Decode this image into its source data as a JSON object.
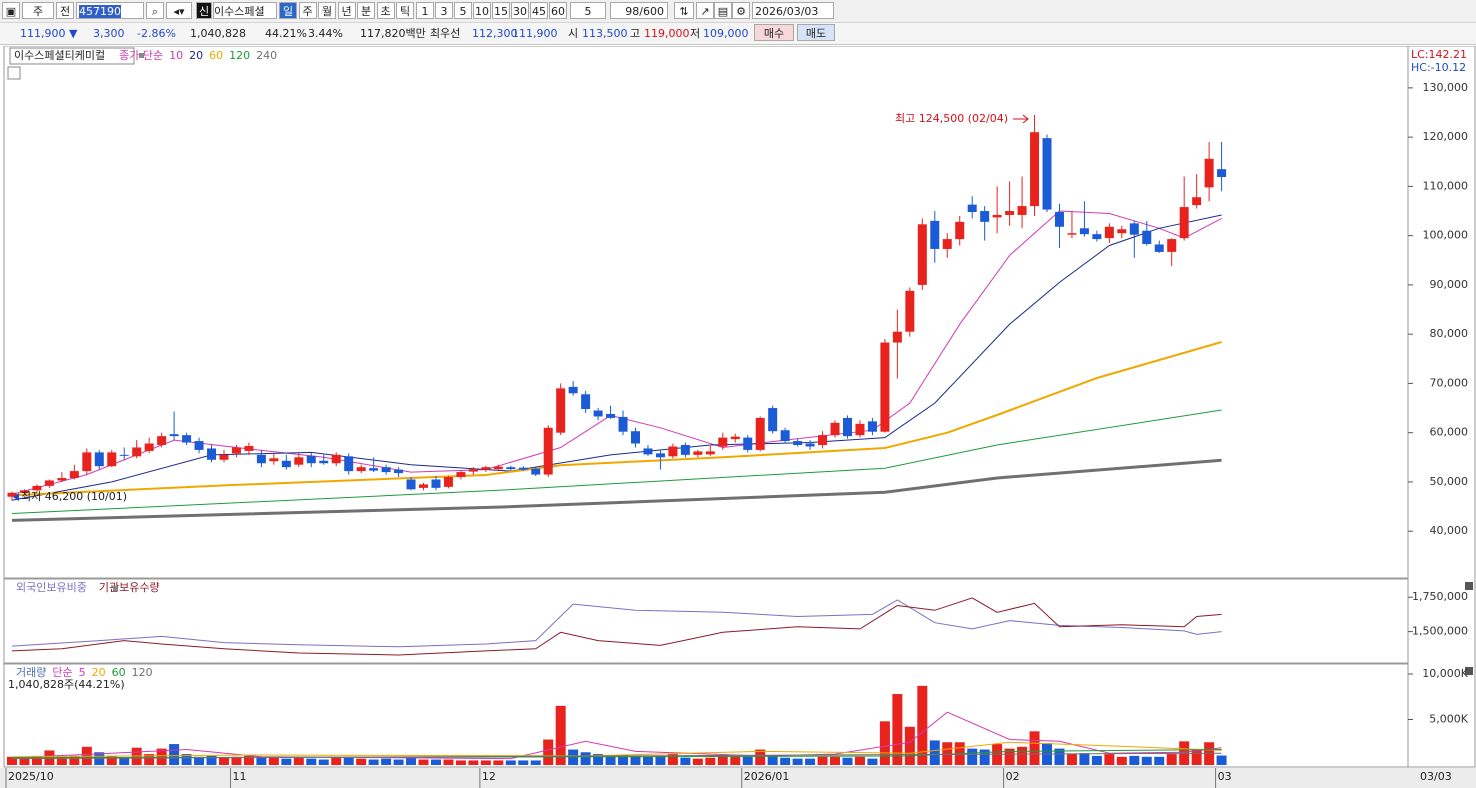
{
  "toolbar": {
    "market": "주",
    "prev": "전",
    "code": "457190",
    "sin": "신",
    "name": "이수스페셜",
    "periods": [
      "일",
      "주",
      "월",
      "년",
      "분",
      "초",
      "틱"
    ],
    "intervals": [
      "1",
      "3",
      "5",
      "10",
      "15",
      "30",
      "45",
      "60"
    ],
    "unit": "5",
    "count": "98/600",
    "date": "2026/03/03"
  },
  "quote": {
    "price": "111,900 ▼",
    "change": "3,300",
    "rate": "-2.86%",
    "volume": "1,040,828",
    "volume_rate": "44.21%",
    "turnover": "3.44%",
    "amount": "117,820백만",
    "best_label": "최우선",
    "ask": "112,300",
    "bid": "111,900",
    "open_label": "시",
    "open": "113,500",
    "high_label": "고",
    "high": "119,000",
    "low_label": "저",
    "low": "109,000",
    "buy": "매수",
    "sell": "매도"
  },
  "chart_data": [
    {
      "type": "candlestick",
      "title": "이수스페셜티케미컬",
      "legend_label": "종가 단순",
      "up_color": "#e8231e",
      "down_color": "#1c5bd6",
      "indicators": [
        "LC:142.21",
        "HC:-10.12"
      ],
      "annotations": [
        "최고 124,500 (02/04)",
        "최저 46,200 (10/01)"
      ],
      "candles": {
        "open": [
          47000,
          47800,
          48300,
          49200,
          50300,
          50800,
          52200,
          56000,
          53200,
          55500,
          55200,
          56300,
          57500,
          59700,
          59500,
          58300,
          56800,
          54500,
          55800,
          56300,
          55500,
          54200,
          54300,
          53500,
          55300,
          54300,
          53800,
          55200,
          52200,
          52800,
          53000,
          52500,
          50500,
          48800,
          50500,
          49000,
          51000,
          52100,
          52500,
          52600,
          53000,
          52900,
          52700,
          51500,
          60000,
          69300,
          67800,
          64500,
          63800,
          63200,
          60300,
          56800,
          55800,
          55200,
          57500,
          55500,
          55600,
          57200,
          58700,
          59000,
          56500,
          65000,
          60500,
          58300,
          57800,
          57500,
          59500,
          63000,
          59500,
          62300,
          60200,
          78300,
          80500,
          90000,
          103000,
          97300,
          99300,
          106300,
          105000,
          103700,
          104200,
          104200,
          106000,
          119800,
          104800,
          100200,
          101500,
          100300,
          99500,
          100500,
          102500,
          101000,
          98200,
          96700,
          99500,
          106200,
          109800,
          113500
        ],
        "high": [
          48000,
          48500,
          49500,
          50500,
          52000,
          53500,
          56800,
          56500,
          56500,
          57000,
          58500,
          59000,
          60000,
          64300,
          60000,
          59000,
          57500,
          56500,
          57500,
          58000,
          56500,
          55800,
          55500,
          55800,
          56000,
          55500,
          56000,
          55800,
          53500,
          55000,
          53500,
          53000,
          51000,
          49800,
          51200,
          51300,
          52300,
          53000,
          53300,
          53500,
          53300,
          53200,
          53000,
          61500,
          70000,
          70500,
          68500,
          65000,
          65500,
          64500,
          61000,
          57500,
          56500,
          57800,
          58000,
          56500,
          57300,
          60000,
          59800,
          59500,
          63300,
          65500,
          61000,
          58800,
          58500,
          60300,
          62500,
          63500,
          62500,
          63000,
          79000,
          85000,
          89500,
          103500,
          105000,
          100500,
          104000,
          108000,
          106000,
          110000,
          111000,
          112000,
          124500,
          120500,
          106500,
          105000,
          107000,
          101000,
          102500,
          102000,
          103000,
          103000,
          99000,
          99500,
          112000,
          112500,
          119000,
          119000
        ],
        "low": [
          46200,
          47300,
          48000,
          48800,
          50000,
          50500,
          51500,
          52500,
          53000,
          54500,
          54800,
          55800,
          57000,
          58500,
          57500,
          55800,
          54000,
          54000,
          55000,
          55500,
          53000,
          53500,
          52500,
          53000,
          53000,
          53500,
          53200,
          51500,
          51800,
          52000,
          51500,
          51000,
          48300,
          48300,
          48300,
          48700,
          50500,
          51500,
          52000,
          52200,
          52300,
          52200,
          51200,
          51000,
          59500,
          67500,
          64000,
          62500,
          62800,
          59500,
          57000,
          55300,
          52500,
          54800,
          55000,
          55000,
          55300,
          56500,
          58000,
          56000,
          56200,
          59800,
          57800,
          57200,
          56500,
          56800,
          59000,
          58800,
          59000,
          59500,
          60000,
          71000,
          79500,
          89000,
          94500,
          95500,
          98000,
          103500,
          99000,
          100500,
          102000,
          101500,
          104000,
          104800,
          97500,
          99500,
          99800,
          98800,
          98500,
          99500,
          95500,
          98000,
          96500,
          93800,
          99000,
          105500,
          107000,
          109000
        ],
        "close": [
          47800,
          48300,
          49200,
          50300,
          50800,
          52200,
          56000,
          53200,
          56000,
          55300,
          57000,
          57800,
          59300,
          59300,
          58000,
          56500,
          54500,
          55500,
          57000,
          57300,
          53800,
          54800,
          53000,
          55000,
          53800,
          53800,
          55500,
          52200,
          53000,
          52300,
          52000,
          51800,
          48500,
          49500,
          48800,
          51000,
          52000,
          52600,
          53000,
          53100,
          52600,
          52500,
          51500,
          61000,
          69000,
          68000,
          64800,
          63300,
          63000,
          60200,
          57800,
          55600,
          55000,
          57200,
          55500,
          56200,
          56200,
          59000,
          59200,
          56500,
          63000,
          60300,
          58300,
          57500,
          57200,
          59500,
          62000,
          59300,
          61800,
          60200,
          78300,
          80500,
          88800,
          102300,
          97300,
          99300,
          102800,
          104800,
          102800,
          104200,
          105000,
          106000,
          121000,
          105300,
          101800,
          100500,
          100300,
          99300,
          101800,
          101300,
          100200,
          98300,
          96700,
          99300,
          105800,
          107800,
          115600,
          111900
        ]
      },
      "series": [
        {
          "name": "10",
          "color": "#d23ab4",
          "width": 1,
          "x": [
            0,
            6,
            13,
            18,
            25,
            32,
            38,
            44,
            48,
            52,
            57,
            62,
            69,
            72,
            76,
            80,
            84,
            88,
            92,
            94,
            97
          ],
          "values": [
            47500,
            51500,
            58500,
            57000,
            55000,
            52000,
            52500,
            57000,
            63500,
            61000,
            57000,
            58500,
            60500,
            66000,
            82000,
            96000,
            105000,
            104500,
            101500,
            99500,
            103500
          ]
        },
        {
          "name": "20",
          "color": "#1a2a8c",
          "width": 1,
          "x": [
            0,
            8,
            16,
            24,
            32,
            40,
            48,
            56,
            64,
            70,
            74,
            80,
            84,
            88,
            92,
            97
          ],
          "values": [
            46300,
            50000,
            55500,
            56000,
            53500,
            52200,
            55500,
            57500,
            58000,
            59000,
            66000,
            82000,
            90500,
            98000,
            101500,
            104200
          ]
        },
        {
          "name": "60",
          "color": "#f0a800",
          "width": 2,
          "x": [
            0,
            17,
            38,
            44,
            57,
            70,
            75,
            79,
            87,
            97
          ],
          "values": [
            47300,
            49300,
            51400,
            53400,
            55000,
            56900,
            60000,
            63600,
            71100,
            78400
          ]
        },
        {
          "name": "120",
          "color": "#1e9a3c",
          "width": 1,
          "x": [
            0,
            39,
            70,
            79,
            97
          ],
          "values": [
            43600,
            48300,
            52800,
            57500,
            64600
          ]
        },
        {
          "name": "240",
          "color": "#707070",
          "width": 3,
          "x": [
            0,
            39,
            70,
            79,
            97
          ],
          "values": [
            42200,
            44900,
            47900,
            50800,
            54400
          ]
        }
      ],
      "ylim": [
        30500,
        138500
      ],
      "yticks": [
        {
          "value": 40000,
          "label": "40,000"
        },
        {
          "value": 50000,
          "label": "50,000"
        },
        {
          "value": 60000,
          "label": "60,000"
        },
        {
          "value": 70000,
          "label": "70,000"
        },
        {
          "value": 80000,
          "label": "80,000"
        },
        {
          "value": 90000,
          "label": "90,000"
        },
        {
          "value": 100000,
          "label": "100,000"
        },
        {
          "value": 110000,
          "label": "110,000"
        },
        {
          "value": 120000,
          "label": "120,000"
        },
        {
          "value": 130000,
          "label": "130,000"
        }
      ]
    },
    {
      "type": "line",
      "series": [
        {
          "name": "외국인보유비중",
          "color": "#7b6fc4",
          "x": [
            0,
            7,
            12,
            17,
            23,
            31,
            38,
            42,
            45,
            50,
            57,
            63,
            69,
            71,
            74,
            77,
            80,
            84,
            89,
            94,
            95,
            97
          ],
          "values": [
            1395000,
            1435000,
            1465000,
            1420000,
            1405000,
            1390000,
            1410000,
            1435000,
            1700000,
            1655000,
            1640000,
            1610000,
            1625000,
            1730000,
            1565000,
            1520000,
            1580000,
            1545000,
            1530000,
            1505000,
            1480000,
            1500000
          ]
        },
        {
          "name": "기관보유수량",
          "color": "#8b1a2a",
          "x": [
            0,
            4,
            9,
            12,
            17,
            23,
            31,
            38,
            42,
            44,
            47,
            52,
            57,
            63,
            68,
            71,
            74,
            77,
            79,
            82,
            84,
            89,
            94,
            95,
            97
          ],
          "values": [
            1360000,
            1375000,
            1435000,
            1410000,
            1375000,
            1345000,
            1330000,
            1360000,
            1375000,
            1495000,
            1435000,
            1400000,
            1495000,
            1535000,
            1520000,
            1690000,
            1655000,
            1745000,
            1640000,
            1705000,
            1535000,
            1550000,
            1535000,
            1610000,
            1625000
          ]
        }
      ],
      "ylim": [
        1272000,
        1875000
      ],
      "yticks": [
        {
          "value": 1500000,
          "label": "1,500,000"
        },
        {
          "value": 1750000,
          "label": "1,750,000"
        }
      ]
    },
    {
      "type": "bar",
      "title": "거래량",
      "legend_label": "단순",
      "note": "1,040,828주(44.21%)",
      "date_label": "03/03",
      "values": [
        900,
        800,
        1000,
        1600,
        900,
        1000,
        2000,
        1400,
        1000,
        800,
        1900,
        1200,
        1800,
        2300,
        1200,
        900,
        1000,
        800,
        900,
        1000,
        900,
        800,
        700,
        800,
        700,
        600,
        900,
        800,
        700,
        600,
        700,
        600,
        800,
        600,
        600,
        600,
        500,
        500,
        500,
        500,
        500,
        500,
        500,
        2800,
        6500,
        1700,
        1400,
        1200,
        1000,
        1100,
        1000,
        900,
        1000,
        1200,
        800,
        700,
        800,
        1100,
        900,
        900,
        1700,
        1100,
        800,
        700,
        700,
        900,
        900,
        800,
        900,
        700,
        4800,
        7800,
        4200,
        8700,
        2700,
        2500,
        2500,
        1800,
        1700,
        2300,
        1800,
        2000,
        3700,
        2400,
        1800,
        1200,
        1300,
        1000,
        1200,
        900,
        1000,
        900,
        900,
        1200,
        2600,
        1700,
        2500,
        1040.828
      ],
      "series": [
        {
          "name": "5",
          "color": "#d23ab4",
          "x": [
            0,
            8,
            14,
            20,
            40,
            46,
            50,
            60,
            66,
            72,
            75,
            80,
            84,
            88,
            94,
            97
          ],
          "values": [
            800,
            1300,
            1700,
            900,
            700,
            2600,
            1500,
            1000,
            1200,
            2500,
            5800,
            2800,
            2600,
            1300,
            1400,
            1900
          ]
        },
        {
          "name": "20",
          "color": "#f0a800",
          "x": [
            0,
            20,
            46,
            60,
            72,
            80,
            90,
            97
          ],
          "values": [
            900,
            1100,
            1000,
            1500,
            1300,
            2500,
            2000,
            1600
          ]
        },
        {
          "name": "60",
          "color": "#1e9a3c",
          "x": [
            0,
            50,
            72,
            80,
            97
          ],
          "values": [
            800,
            900,
            1000,
            1500,
            1700
          ]
        },
        {
          "name": "120",
          "color": "#707070",
          "x": [
            0,
            97
          ],
          "values": [
            700,
            1300
          ]
        }
      ],
      "ylim": [
        0,
        11100
      ],
      "yticks": [
        {
          "value": 5000,
          "label": "5,000K"
        },
        {
          "value": 10000,
          "label": "10,000K"
        }
      ],
      "xticks": [
        {
          "value": 0,
          "label": "2025/10"
        },
        {
          "value": 18,
          "label": "11"
        },
        {
          "value": 38,
          "label": "12"
        },
        {
          "value": 59,
          "label": "2026/01"
        },
        {
          "value": 80,
          "label": "02"
        },
        {
          "value": 97,
          "label": "03"
        }
      ]
    }
  ]
}
